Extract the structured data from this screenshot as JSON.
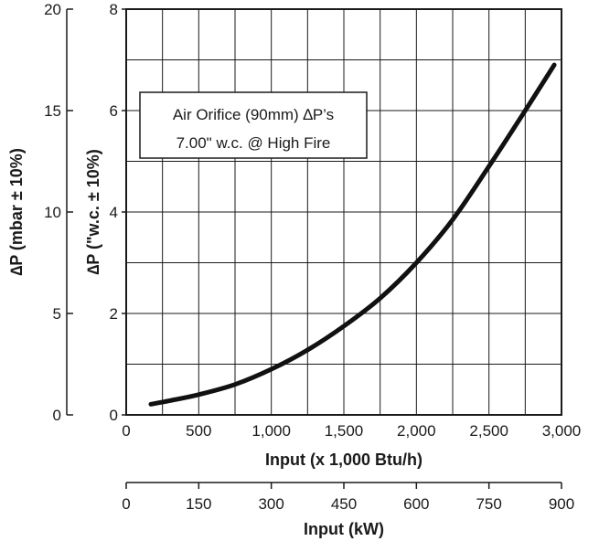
{
  "chart_data": {
    "type": "line",
    "title": "",
    "legend_box": {
      "line1": "Air Orifice (90mm)  ∆P’s",
      "line2": "7.00\" w.c. @  High Fire",
      "placement": "top-left"
    },
    "x_primary": {
      "label": "Input (x 1,000 Btu/h)",
      "range": [
        0,
        3000
      ],
      "ticks": [
        0,
        500,
        1000,
        1500,
        2000,
        2500,
        3000
      ],
      "tick_labels": [
        "0",
        "500",
        "1,000",
        "1,500",
        "2,000",
        "2,500",
        "3,000"
      ]
    },
    "x_secondary": {
      "label": "Input (kW)",
      "range": [
        0,
        900
      ],
      "ticks": [
        0,
        150,
        300,
        450,
        600,
        750,
        900
      ],
      "tick_labels": [
        "0",
        "150",
        "300",
        "450",
        "600",
        "750",
        "900"
      ]
    },
    "y_primary": {
      "label": "∆P (\"w.c. ± 10%)",
      "range": [
        0,
        8
      ],
      "ticks": [
        0,
        2,
        4,
        6,
        8
      ],
      "tick_labels": [
        "0",
        "2",
        "4",
        "6",
        "8"
      ]
    },
    "y_secondary": {
      "label": "∆P (mbar ± 10%)",
      "range": [
        0,
        20
      ],
      "ticks": [
        0,
        5,
        10,
        15,
        20
      ],
      "tick_labels": [
        "0",
        "5",
        "10",
        "15",
        "20"
      ]
    },
    "grid": true,
    "series": [
      {
        "x": [
          170,
          300,
          500,
          750,
          1000,
          1250,
          1500,
          1750,
          2000,
          2250,
          2500,
          2750,
          2950
        ],
        "y": [
          0.21,
          0.28,
          0.4,
          0.6,
          0.9,
          1.28,
          1.75,
          2.3,
          3.0,
          3.85,
          4.9,
          6.0,
          6.9
        ]
      }
    ]
  }
}
